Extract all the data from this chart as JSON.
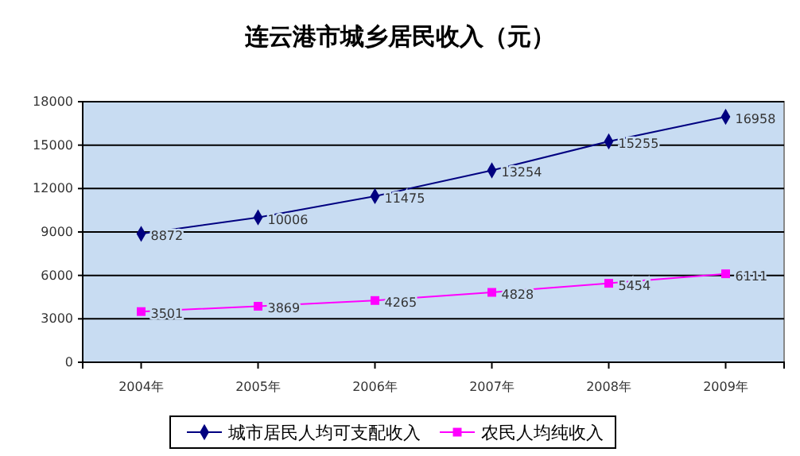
{
  "chart_data": {
    "type": "line",
    "title": "连云港市城乡居民收入（元）",
    "categories": [
      "2004年",
      "2005年",
      "2006年",
      "2007年",
      "2008年",
      "2009年"
    ],
    "series": [
      {
        "name": "城市居民人均可支配收入",
        "color": "#000080",
        "values": [
          8872,
          10006,
          11475,
          13254,
          15255,
          16958
        ],
        "marker": "diamond"
      },
      {
        "name": "农民人均纯收入",
        "color": "#ff00ff",
        "values": [
          3501,
          3869,
          4265,
          4828,
          5454,
          6111
        ],
        "marker": "square"
      }
    ],
    "ylim": [
      0,
      18000
    ],
    "yticks": [
      0,
      3000,
      6000,
      9000,
      12000,
      15000,
      18000
    ],
    "grid": "y",
    "legend": "bottom",
    "data_labels": true,
    "line_style": "solid"
  }
}
